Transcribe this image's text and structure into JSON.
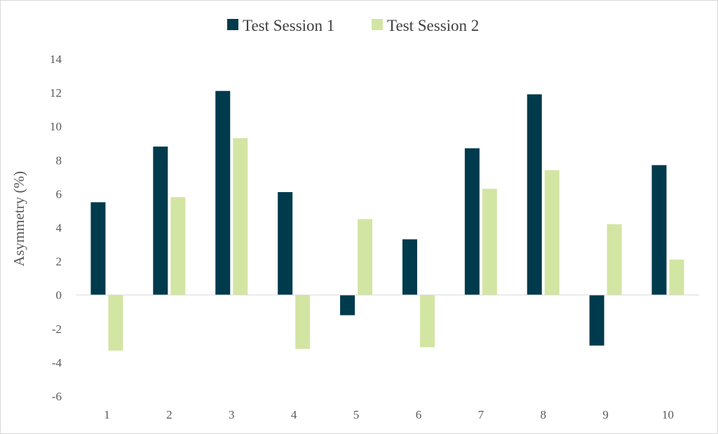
{
  "chart_data": {
    "type": "bar",
    "title": "",
    "xlabel": "",
    "ylabel": "Asymmetry (%)",
    "categories": [
      "1",
      "2",
      "3",
      "4",
      "5",
      "6",
      "7",
      "8",
      "9",
      "10"
    ],
    "series": [
      {
        "name": "Test Session 1",
        "color": "#003a4d",
        "values": [
          5.5,
          8.8,
          12.1,
          6.1,
          -1.2,
          3.3,
          8.7,
          11.9,
          -3.0,
          7.7
        ]
      },
      {
        "name": "Test Session 2",
        "color": "#d3e5a3",
        "values": [
          -3.3,
          5.8,
          9.3,
          -3.2,
          4.5,
          -3.1,
          6.3,
          7.4,
          4.2,
          2.1
        ]
      }
    ],
    "ylim": [
      -6,
      14
    ],
    "yticks": [
      "-6",
      "-4",
      "-2",
      "0",
      "2",
      "4",
      "6",
      "8",
      "10",
      "12",
      "14"
    ],
    "grid": false,
    "legend_position": "top-center"
  }
}
